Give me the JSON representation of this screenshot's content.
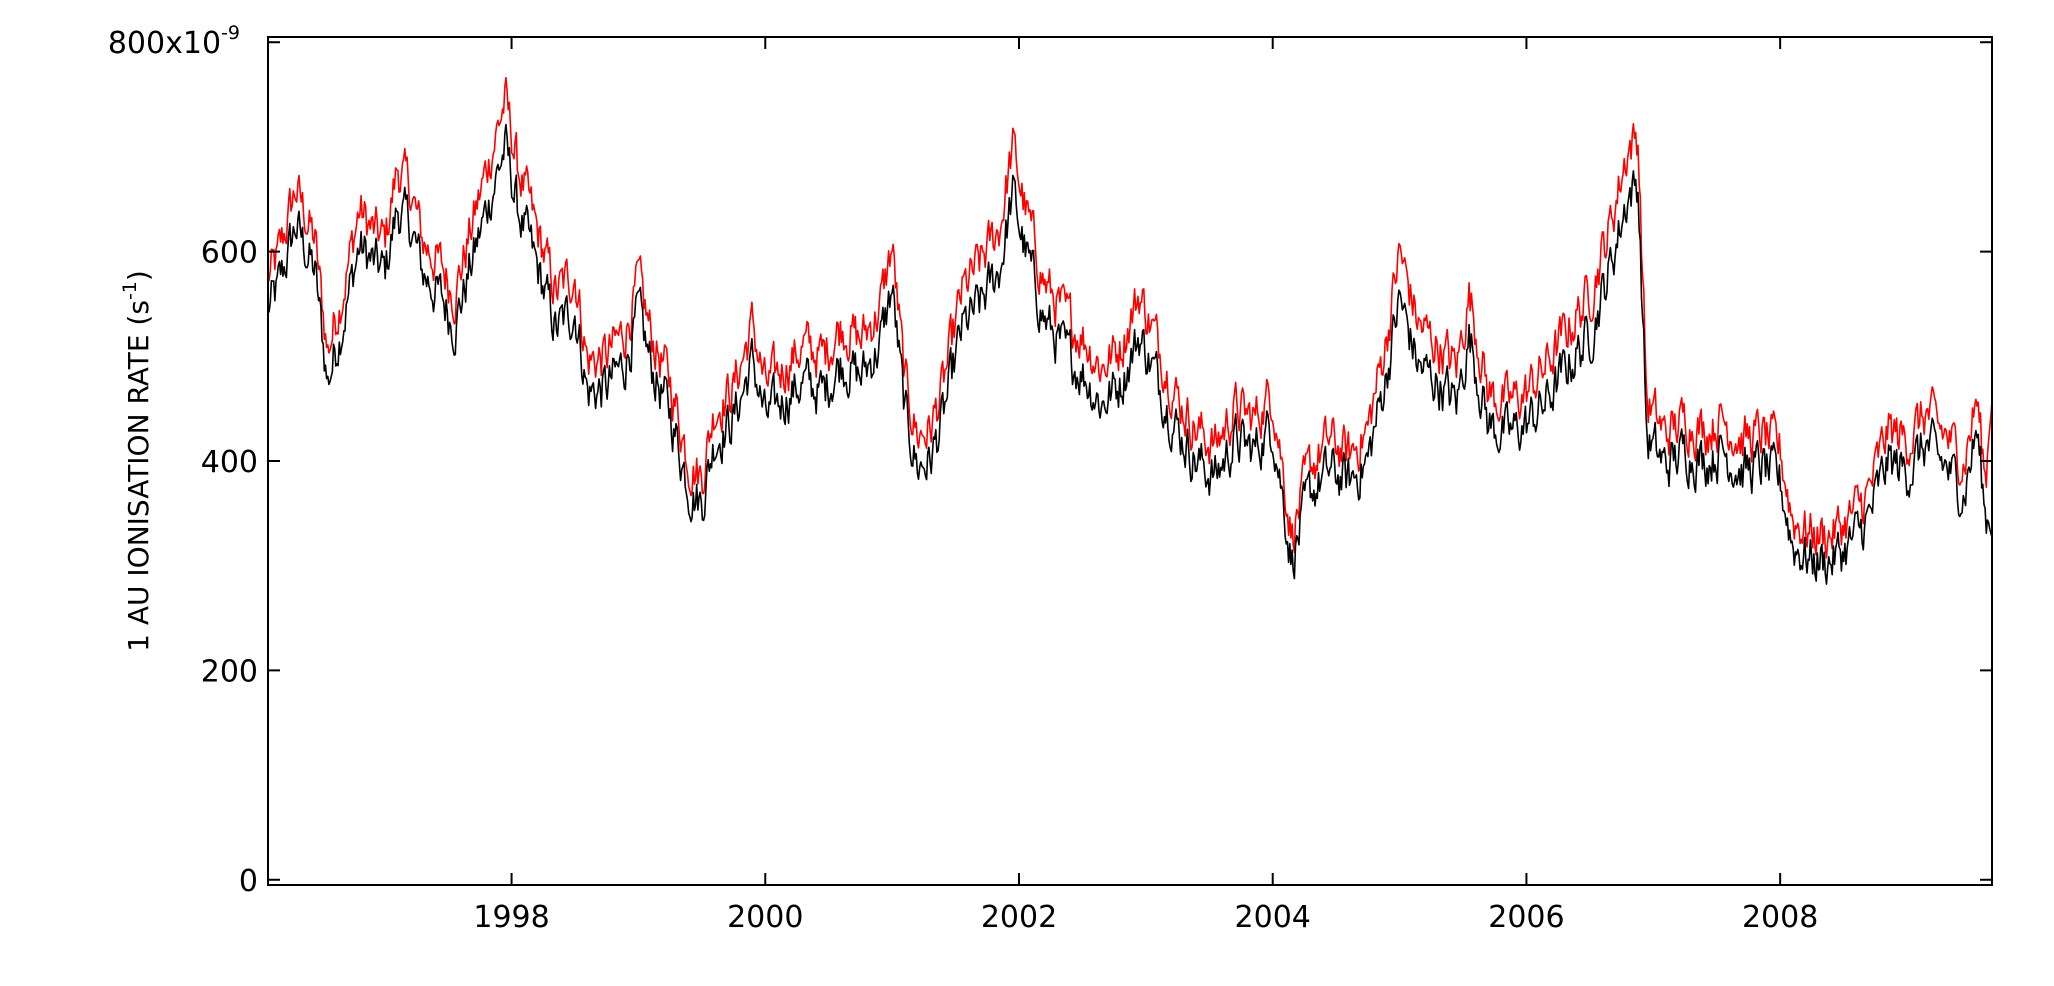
{
  "chart_data": {
    "type": "line",
    "title": "",
    "xlabel": "",
    "ylabel": "1 AU IONISATION RATE (s",
    "ylabel_sup": "-1",
    "ylabel_close": ")",
    "y_multiplier_text": "x10",
    "y_multiplier_exp": "-9",
    "xlim": [
      1996.08,
      2009.67
    ],
    "ylim": [
      -5,
      805
    ],
    "x_ticks": [
      1998,
      2000,
      2002,
      2004,
      2006,
      2008
    ],
    "x_tick_labels": [
      "1998",
      "2000",
      "2002",
      "2004",
      "2006",
      "2008"
    ],
    "y_ticks": [
      0,
      200,
      400,
      600,
      800
    ],
    "y_tick_labels": [
      "0",
      "200",
      "400",
      "600",
      "800"
    ],
    "grid": false,
    "legend": "none",
    "noise_amplitude": 20,
    "series": [
      {
        "color": "#ff0000",
        "x": [
          1996.08,
          1996.15,
          1996.3,
          1996.45,
          1996.55,
          1996.7,
          1996.8,
          1996.9,
          1997.0,
          1997.1,
          1997.2,
          1997.3,
          1997.45,
          1997.55,
          1997.7,
          1997.85,
          1997.95,
          1998.05,
          1998.2,
          1998.35,
          1998.5,
          1998.6,
          1998.75,
          1998.9,
          1999.0,
          1999.1,
          1999.25,
          1999.4,
          1999.5,
          1999.6,
          1999.75,
          1999.9,
          2000.0,
          2000.15,
          2000.3,
          2000.45,
          2000.6,
          2000.75,
          2000.9,
          2001.0,
          2001.1,
          2001.2,
          2001.3,
          2001.4,
          2001.55,
          2001.7,
          2001.85,
          2001.95,
          2002.05,
          2002.2,
          2002.35,
          2002.5,
          2002.65,
          2002.8,
          2002.95,
          2003.1,
          2003.25,
          2003.4,
          2003.55,
          2003.7,
          2003.85,
          2004.0,
          2004.15,
          2004.3,
          2004.45,
          2004.6,
          2004.75,
          2004.9,
          2005.0,
          2005.15,
          2005.3,
          2005.45,
          2005.55,
          2005.7,
          2005.85,
          2006.0,
          2006.15,
          2006.25,
          2006.35,
          2006.5,
          2006.65,
          2006.8,
          2006.88,
          2006.95,
          2007.1,
          2007.25,
          2007.4,
          2007.55,
          2007.7,
          2007.85,
          2008.0,
          2008.1,
          2008.25,
          2008.4,
          2008.55,
          2008.7,
          2008.85,
          2009.0,
          2009.15,
          2009.3,
          2009.45,
          2009.55,
          2009.62,
          2009.67
        ],
        "values": [
          575,
          590,
          660,
          610,
          505,
          580,
          640,
          620,
          610,
          680,
          660,
          610,
          585,
          560,
          630,
          700,
          745,
          680,
          620,
          560,
          580,
          495,
          500,
          525,
          570,
          520,
          475,
          400,
          385,
          450,
          470,
          530,
          470,
          490,
          510,
          500,
          530,
          515,
          545,
          605,
          475,
          425,
          430,
          470,
          560,
          590,
          625,
          700,
          640,
          570,
          540,
          520,
          490,
          510,
          560,
          510,
          460,
          430,
          415,
          450,
          440,
          465,
          330,
          395,
          420,
          405,
          430,
          520,
          600,
          530,
          510,
          490,
          560,
          465,
          455,
          465,
          490,
          510,
          530,
          560,
          620,
          700,
          710,
          455,
          425,
          440,
          430,
          440,
          420,
          425,
          410,
          345,
          330,
          330,
          345,
          370,
          430,
          420,
          445,
          425,
          400,
          460,
          380,
          480
        ]
      },
      {
        "color": "#000000",
        "x": [
          1996.08,
          1996.15,
          1996.3,
          1996.45,
          1996.55,
          1996.7,
          1996.8,
          1996.9,
          1997.0,
          1997.1,
          1997.2,
          1997.3,
          1997.45,
          1997.55,
          1997.7,
          1997.85,
          1997.95,
          1998.05,
          1998.2,
          1998.35,
          1998.5,
          1998.6,
          1998.75,
          1998.9,
          1999.0,
          1999.1,
          1999.25,
          1999.4,
          1999.5,
          1999.6,
          1999.75,
          1999.9,
          2000.0,
          2000.15,
          2000.3,
          2000.45,
          2000.6,
          2000.75,
          2000.9,
          2001.0,
          2001.1,
          2001.2,
          2001.3,
          2001.4,
          2001.55,
          2001.7,
          2001.85,
          2001.95,
          2002.05,
          2002.2,
          2002.35,
          2002.5,
          2002.65,
          2002.8,
          2002.95,
          2003.1,
          2003.25,
          2003.4,
          2003.55,
          2003.7,
          2003.85,
          2004.0,
          2004.15,
          2004.3,
          2004.45,
          2004.6,
          2004.75,
          2004.9,
          2005.0,
          2005.15,
          2005.3,
          2005.45,
          2005.55,
          2005.7,
          2005.85,
          2006.0,
          2006.15,
          2006.25,
          2006.35,
          2006.5,
          2006.65,
          2006.8,
          2006.88,
          2006.95,
          2007.1,
          2007.25,
          2007.4,
          2007.55,
          2007.7,
          2007.85,
          2008.0,
          2008.1,
          2008.25,
          2008.4,
          2008.55,
          2008.7,
          2008.85,
          2009.0,
          2009.15,
          2009.3,
          2009.45,
          2009.55,
          2009.62,
          2009.67
        ],
        "values": [
          545,
          560,
          625,
          580,
          475,
          550,
          605,
          590,
          580,
          640,
          625,
          580,
          555,
          530,
          595,
          660,
          700,
          640,
          585,
          525,
          545,
          465,
          470,
          495,
          540,
          490,
          445,
          375,
          360,
          420,
          440,
          495,
          440,
          460,
          475,
          465,
          495,
          480,
          510,
          565,
          445,
          395,
          400,
          440,
          525,
          550,
          585,
          655,
          600,
          535,
          505,
          485,
          455,
          475,
          520,
          475,
          430,
          400,
          385,
          420,
          410,
          435,
          305,
          370,
          390,
          380,
          400,
          485,
          555,
          490,
          475,
          455,
          520,
          435,
          425,
          435,
          455,
          475,
          495,
          520,
          580,
          655,
          665,
          420,
          395,
          410,
          400,
          410,
          390,
          395,
          380,
          320,
          305,
          305,
          320,
          345,
          400,
          390,
          415,
          395,
          370,
          430,
          345,
          350
        ]
      }
    ]
  }
}
